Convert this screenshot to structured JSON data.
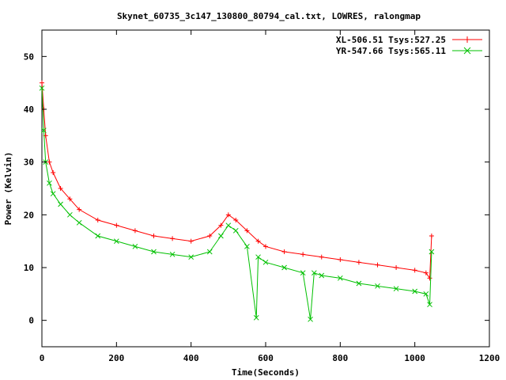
{
  "chart_data": {
    "type": "scatter",
    "title": "Skynet_60735_3c147_130800_80794_cal.txt, LOWRES, ralongmap",
    "xlabel": "Time(Seconds)",
    "ylabel": "Power (Kelvin)",
    "xlim": [
      0,
      1200
    ],
    "ylim": [
      -5,
      55
    ],
    "xticks": [
      0,
      200,
      400,
      600,
      800,
      1000,
      1200
    ],
    "yticks": [
      0,
      10,
      20,
      30,
      40,
      50
    ],
    "grid": false,
    "legend_position": "top-right",
    "series": [
      {
        "name": "XL-506.51 Tsys:527.25",
        "color": "#ff0000",
        "marker": "plus",
        "x": [
          0,
          5,
          10,
          20,
          30,
          50,
          75,
          100,
          150,
          200,
          250,
          300,
          350,
          400,
          450,
          480,
          500,
          520,
          550,
          580,
          600,
          650,
          700,
          750,
          800,
          850,
          900,
          950,
          1000,
          1030,
          1040,
          1045
        ],
        "y": [
          45,
          40,
          35,
          30,
          28,
          25,
          23,
          21,
          19,
          18,
          17,
          16,
          15.5,
          15,
          16,
          18,
          20,
          19,
          17,
          15,
          14,
          13,
          12.5,
          12,
          11.5,
          11,
          10.5,
          10,
          9.5,
          9,
          8,
          16
        ]
      },
      {
        "name": "YR-547.66 Tsys:565.11",
        "color": "#00c000",
        "marker": "cross",
        "x": [
          0,
          5,
          10,
          20,
          30,
          50,
          75,
          100,
          150,
          200,
          250,
          300,
          350,
          400,
          450,
          480,
          500,
          520,
          550,
          575,
          580,
          600,
          650,
          700,
          720,
          730,
          750,
          800,
          850,
          900,
          950,
          1000,
          1030,
          1040,
          1045
        ],
        "y": [
          44,
          36,
          30,
          26,
          24,
          22,
          20,
          18.5,
          16,
          15,
          14,
          13,
          12.5,
          12,
          13,
          16,
          18,
          17,
          14,
          0.5,
          12,
          11,
          10,
          9,
          0.2,
          9,
          8.5,
          8,
          7,
          6.5,
          6,
          5.5,
          5,
          3,
          13
        ]
      }
    ]
  }
}
